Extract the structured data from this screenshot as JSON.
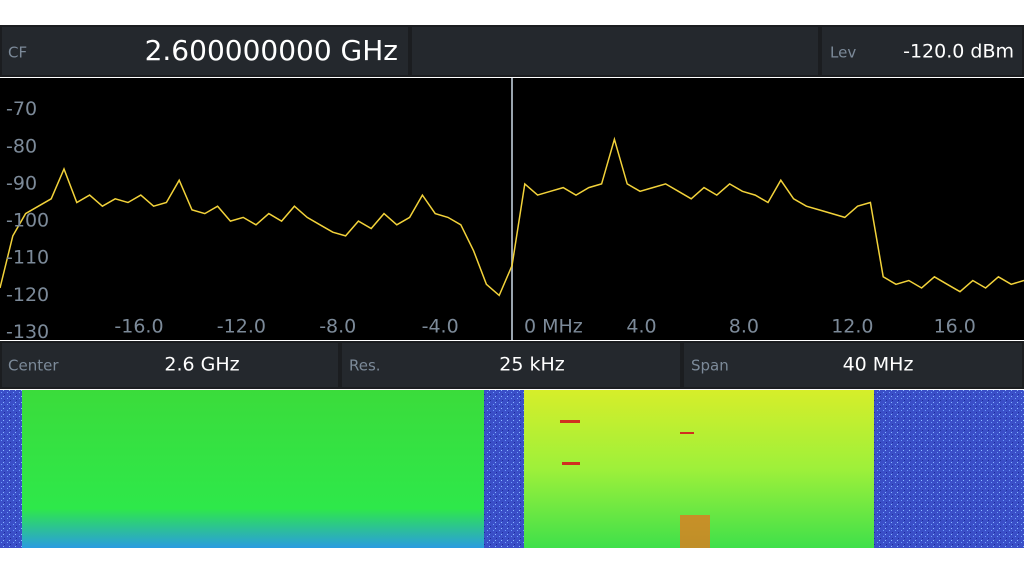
{
  "header": {
    "cf_label": "CF",
    "cf_value": "2.600000000 GHz",
    "lev_label": "Lev",
    "lev_value": "-120.0 dBm"
  },
  "chart_data": {
    "type": "line",
    "x": [
      -20,
      -19.5,
      -19,
      -18.5,
      -18,
      -17.5,
      -17,
      -16.5,
      -16,
      -15.5,
      -15,
      -14.5,
      -14,
      -13.5,
      -13,
      -12.5,
      -12,
      -11.5,
      -11,
      -10.5,
      -10,
      -9.5,
      -9,
      -8.5,
      -8,
      -7.5,
      -7,
      -6.5,
      -6,
      -5.5,
      -5,
      -4.5,
      -4,
      -3.5,
      -3,
      -2.5,
      -2,
      -1.5,
      -1,
      -0.5,
      0,
      0.5,
      1,
      1.5,
      2,
      2.5,
      3,
      3.5,
      4,
      4.5,
      5,
      5.5,
      6,
      6.5,
      7,
      7.5,
      8,
      8.5,
      9,
      9.5,
      10,
      10.5,
      11,
      11.5,
      12,
      12.5,
      13,
      13.5,
      14,
      14.5,
      15,
      15.5,
      16,
      16.5,
      17,
      17.5,
      18,
      18.5,
      19,
      19.5,
      20
    ],
    "series": [
      {
        "color": "#f2d23a",
        "values": [
          -118,
          -104,
          -98,
          -96,
          -94,
          -86,
          -95,
          -93,
          -96,
          -94,
          -95,
          -93,
          -96,
          -95,
          -89,
          -97,
          -98,
          -96,
          -100,
          -99,
          -101,
          -98,
          -100,
          -96,
          -99,
          -101,
          -103,
          -104,
          -100,
          -102,
          -98,
          -101,
          -99,
          -93,
          -98,
          -99,
          -101,
          -108,
          -117,
          -120,
          -112,
          -90,
          -93,
          -92,
          -91,
          -93,
          -91,
          -90,
          -78,
          -90,
          -92,
          -91,
          -90,
          -92,
          -94,
          -91,
          -93,
          -90,
          -92,
          -93,
          -95,
          -89,
          -94,
          -96,
          -97,
          -98,
          -99,
          -96,
          -95,
          -115,
          -117,
          -116,
          -118,
          -115,
          -117,
          -119,
          -116,
          -118,
          -115,
          -117,
          -116
        ]
      }
    ],
    "xlim": [
      -20,
      20
    ],
    "ylim": [
      -132,
      -61.5
    ],
    "xticks": [
      {
        "value": -16,
        "label": "-16.0"
      },
      {
        "value": -12,
        "label": "-12.0"
      },
      {
        "value": -8,
        "label": "-8.0"
      },
      {
        "value": -4,
        "label": "-4.0"
      },
      {
        "value": 0,
        "label": "0 MHz"
      },
      {
        "value": 4,
        "label": "4.0"
      },
      {
        "value": 8,
        "label": "8.0"
      },
      {
        "value": 12,
        "label": "12.0"
      },
      {
        "value": 16,
        "label": "16.0"
      }
    ],
    "yticks": [
      -70,
      -80,
      -90,
      -100,
      -110,
      -120,
      -130
    ],
    "grid": true
  },
  "footer": {
    "center_label": "Center",
    "center_value": "2.6 GHz",
    "res_label": "Res.",
    "res_value": "25 kHz",
    "span_label": "Span",
    "span_value": "40 MHz"
  }
}
